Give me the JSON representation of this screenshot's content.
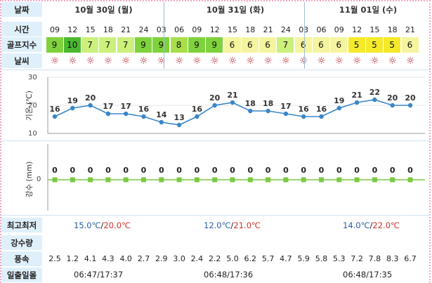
{
  "labels": {
    "date": "날짜",
    "time": "시간",
    "golf": "골프지수",
    "weather": "날씨",
    "minmax": "최고최저",
    "rain_amount": "강수량",
    "wind": "풍속",
    "sun": "일출일몰"
  },
  "days": [
    {
      "label": "10월 30일 (월)",
      "minmax_low": "15.0℃",
      "minmax_high": "20.0℃",
      "sun": "06:47/17:37"
    },
    {
      "label": "10월 31일 (화)",
      "minmax_low": "12.0℃",
      "minmax_high": "21.0℃",
      "sun": "06:48/17:36"
    },
    {
      "label": "11월 01일 (수)",
      "minmax_low": "14.0℃",
      "minmax_high": "22.0℃",
      "sun": "06:48/17:35"
    }
  ],
  "hours": [
    "09",
    "12",
    "15",
    "18",
    "21",
    "24",
    "03",
    "06",
    "09",
    "12",
    "15",
    "18",
    "21",
    "24",
    "03",
    "06",
    "09",
    "12",
    "15",
    "18",
    "21"
  ],
  "golf_index": [
    9,
    10,
    7,
    7,
    7,
    9,
    9,
    8,
    9,
    9,
    6,
    6,
    6,
    7,
    6,
    6,
    6,
    5,
    5,
    5,
    6
  ],
  "golf_colors": {
    "10": "#4cb82f",
    "9": "#7fd23c",
    "8": "#a8de4a",
    "7": "#ccf07c",
    "6": "#f4f59e",
    "5": "#f4ea2a"
  },
  "weather_icon": "sun-icon",
  "temp_axis": {
    "label": "기온 (℃)",
    "ticks": [
      "30",
      "20",
      "10"
    ]
  },
  "rain_axis": {
    "label": "강수 (mm)",
    "tick": "0"
  },
  "chart_data": [
    {
      "type": "line",
      "x": [
        "09",
        "12",
        "15",
        "18",
        "21",
        "24",
        "03",
        "06",
        "09",
        "12",
        "15",
        "18",
        "21",
        "24",
        "03",
        "06",
        "09",
        "12",
        "15",
        "18",
        "21"
      ],
      "series": [
        {
          "values": [
            16,
            19,
            20,
            17,
            17,
            16,
            14,
            13,
            16,
            20,
            21,
            18,
            18,
            17,
            16,
            16,
            19,
            21,
            22,
            20,
            20
          ]
        }
      ],
      "ylabel": "기온 (℃)",
      "ylim": [
        10,
        30
      ],
      "color": "#3a86c8"
    },
    {
      "type": "line",
      "x": [
        "09",
        "12",
        "15",
        "18",
        "21",
        "24",
        "03",
        "06",
        "09",
        "12",
        "15",
        "18",
        "21",
        "24",
        "03",
        "06",
        "09",
        "12",
        "15",
        "18",
        "21"
      ],
      "series": [
        {
          "values": [
            0,
            0,
            0,
            0,
            0,
            0,
            0,
            0,
            0,
            0,
            0,
            0,
            0,
            0,
            0,
            0,
            0,
            0,
            0,
            0,
            0
          ]
        }
      ],
      "ylabel": "강수 (mm)",
      "color": "#7ac943"
    }
  ],
  "wind_speed": [
    "2.5",
    "1.2",
    "4.1",
    "4.3",
    "4.0",
    "2.7",
    "2.9",
    "3.0",
    "2.4",
    "2.2",
    "5.0",
    "6.2",
    "5.7",
    "4.7",
    "5.9",
    "5.8",
    "5.3",
    "7.2",
    "7.8",
    "8.3",
    "6.7"
  ]
}
